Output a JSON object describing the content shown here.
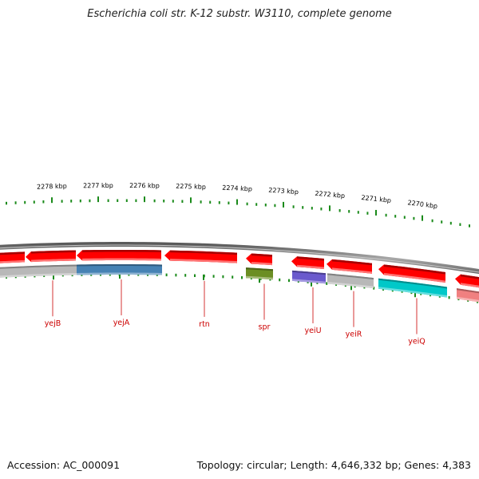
{
  "map": {
    "title": "Escherichia coli str. K-12 substr. W3110, complete genome",
    "accession": "Accession: AC_000091",
    "summary": "Topology: circular; Length: 4,646,332 bp; Genes: 4,383"
  },
  "colors": {
    "backbone": "#8a8a8a",
    "forward_strand": "#ff0000",
    "tick": "#1a8a1a",
    "label": "#cc0000",
    "cog_gray": "#b8b8b8",
    "cog_blue": "#4682b4",
    "cog_olive": "#6b8e23",
    "cog_slate": "#6a5acd",
    "cog_cyan": "#00c8c8",
    "cog_pink": "#f08080"
  },
  "ticks": [
    "2278 kbp",
    "2277 kbp",
    "2276 kbp",
    "2275 kbp",
    "2274 kbp",
    "2273 kbp",
    "2272 kbp",
    "2271 kbp",
    "2270 kbp"
  ],
  "genes": [
    {
      "name": "yejB",
      "strand": "reverse",
      "cog": "cog_gray"
    },
    {
      "name": "yejA",
      "strand": "reverse",
      "cog": "cog_blue"
    },
    {
      "name": "rtn",
      "strand": "reverse",
      "cog": ""
    },
    {
      "name": "spr",
      "strand": "reverse",
      "cog": "cog_olive"
    },
    {
      "name": "yeiU",
      "strand": "reverse",
      "cog": "cog_slate"
    },
    {
      "name": "yeiR",
      "strand": "reverse",
      "cog": "cog_gray"
    },
    {
      "name": "yeiQ",
      "strand": "reverse",
      "cog": "cog_cyan"
    }
  ]
}
